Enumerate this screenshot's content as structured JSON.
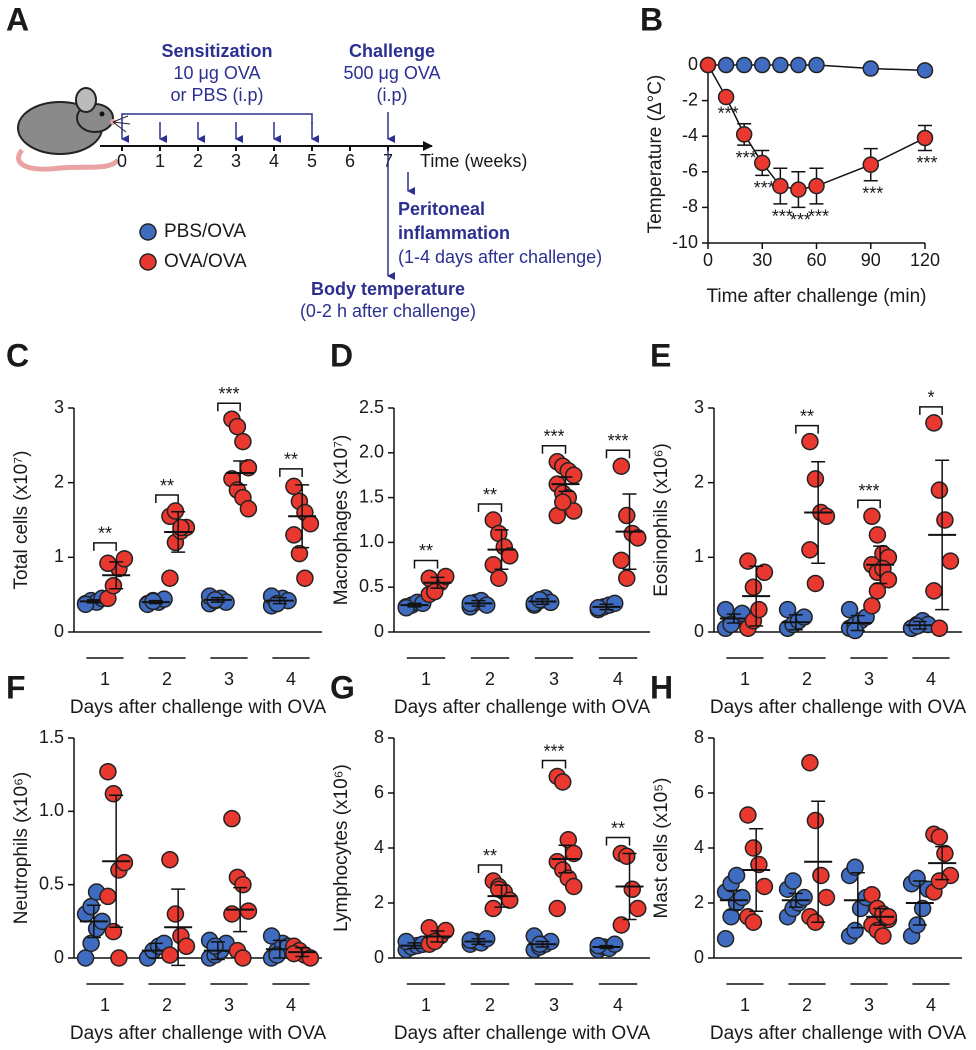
{
  "diagram": {
    "panel": "A",
    "sensitization": {
      "title": "Sensitization",
      "lines": [
        "10 μg OVA",
        "or PBS (i.p)"
      ],
      "weeks": [
        0,
        1,
        2,
        3,
        4,
        5
      ]
    },
    "challenge": {
      "title": "Challenge",
      "lines": [
        "500 μg OVA",
        "(i.p)"
      ],
      "week": 7
    },
    "weeks": [
      0,
      1,
      2,
      3,
      4,
      5,
      6,
      7
    ],
    "axis_label": "Time (weeks)",
    "peritoneal": {
      "title": [
        "Peritoneal",
        "inflammation"
      ],
      "note": "(1-4 days after challenge)"
    },
    "body_temperature": {
      "title": "Body temperature",
      "note": "(0-2 h after challenge)"
    },
    "legend": [
      {
        "name": "PBS/OVA",
        "color": "#3f6cc0"
      },
      {
        "name": "OVA/OVA",
        "color": "#e8382f"
      }
    ]
  },
  "chart_data": [
    {
      "type": "line",
      "panel": "B",
      "xlabel": "Time after challenge (min)",
      "ylabel": "Temperature (Δ°C)",
      "x": [
        0,
        10,
        20,
        30,
        40,
        50,
        60,
        90,
        120
      ],
      "xlim": [
        0,
        120
      ],
      "xticks": [
        0,
        30,
        60,
        90,
        120
      ],
      "ylim": [
        -10,
        0
      ],
      "yticks": [
        0,
        -2,
        -4,
        -6,
        -8,
        -10
      ],
      "series": [
        {
          "color": "#3f6cc0",
          "values": [
            0,
            0,
            0,
            0,
            0,
            0,
            0,
            -0.2,
            -0.3
          ]
        },
        {
          "color": "#e8382f",
          "values": [
            0,
            -1.8,
            -3.9,
            -5.5,
            -6.8,
            -7.0,
            -6.8,
            -5.6,
            -4.1
          ],
          "errors": [
            0,
            0.2,
            0.6,
            0.7,
            1.0,
            1.0,
            1.0,
            0.9,
            0.7
          ],
          "annotations": [
            null,
            "***",
            "***",
            "***",
            "***",
            "***",
            "***",
            "***",
            "***"
          ]
        }
      ]
    },
    {
      "type": "dotplot",
      "panel": "C",
      "ylabel": "Total cells (x10⁷)",
      "xlabel": "Days after challenge with OVA",
      "categories": [
        "1",
        "2",
        "3",
        "4"
      ],
      "ylim": [
        0,
        3
      ],
      "yticks": [
        0,
        1,
        2,
        3
      ],
      "significance": [
        "**",
        "**",
        "***",
        "**"
      ],
      "series": [
        {
          "color": "#3f6cc0",
          "values": [
            [
              0.38,
              0.42,
              0.4,
              0.45,
              0.37
            ],
            [
              0.38,
              0.42,
              0.4,
              0.44,
              0.37,
              0.41
            ],
            [
              0.38,
              0.42,
              0.45,
              0.4,
              0.48,
              0.43
            ],
            [
              0.35,
              0.4,
              0.45,
              0.42,
              0.48,
              0.38
            ]
          ],
          "mean": [
            0.41,
            0.4,
            0.43,
            0.42
          ],
          "errors": [
            0.02,
            0.02,
            0.03,
            0.04
          ]
        },
        {
          "color": "#e8382f",
          "values": [
            [
              0.45,
              0.62,
              0.85,
              0.98,
              0.92
            ],
            [
              0.72,
              1.2,
              1.35,
              1.4,
              1.55,
              1.62,
              1.4
            ],
            [
              2.85,
              2.75,
              2.55,
              2.2,
              2.05,
              1.9,
              1.8,
              1.65
            ],
            [
              1.95,
              1.75,
              1.6,
              1.45,
              1.3,
              1.05,
              0.72
            ]
          ],
          "mean": [
            0.76,
            1.34,
            2.13,
            1.55
          ],
          "errors": [
            0.18,
            0.27,
            0.16,
            0.42
          ]
        }
      ]
    },
    {
      "type": "dotplot",
      "panel": "D",
      "ylabel": "Macrophages (x10⁷)",
      "xlabel": "Days after challenge with OVA",
      "categories": [
        "1",
        "2",
        "3",
        "4"
      ],
      "ylim": [
        0,
        2.5
      ],
      "yticks": [
        0,
        0.5,
        {
          "value": 1,
          "label": "1.0"
        },
        1.5,
        {
          "value": 2,
          "label": "2.0"
        },
        2.5
      ],
      "significance": [
        "**",
        "**",
        "***",
        "***"
      ],
      "series": [
        {
          "color": "#3f6cc0",
          "values": [
            [
              0.28,
              0.3,
              0.33,
              0.32,
              0.27
            ],
            [
              0.28,
              0.33,
              0.35,
              0.3,
              0.32
            ],
            [
              0.3,
              0.35,
              0.38,
              0.33,
              0.32,
              0.36
            ],
            [
              0.25,
              0.28,
              0.3,
              0.32,
              0.27
            ]
          ],
          "mean": [
            0.3,
            0.32,
            0.34,
            0.28
          ],
          "errors": [
            0.02,
            0.03,
            0.03,
            0.03
          ]
        },
        {
          "color": "#e8382f",
          "values": [
            [
              0.42,
              0.5,
              0.55,
              0.62,
              0.6,
              0.45
            ],
            [
              1.25,
              1.1,
              0.95,
              0.85,
              0.75,
              0.6
            ],
            [
              1.9,
              1.85,
              1.8,
              1.75,
              1.65,
              1.55,
              1.5,
              1.35,
              1.3,
              1.45
            ],
            [
              1.85,
              1.3,
              1.1,
              1.05,
              0.8,
              0.6
            ]
          ],
          "mean": [
            0.55,
            0.92,
            1.65,
            1.12
          ],
          "errors": [
            0.06,
            0.22,
            0.08,
            0.42
          ]
        }
      ]
    },
    {
      "type": "dotplot",
      "panel": "E",
      "ylabel": "Eosinophils (x10⁶)",
      "xlabel": "Days after challenge with OVA",
      "categories": [
        "1",
        "2",
        "3",
        "4"
      ],
      "ylim": [
        0,
        3
      ],
      "yticks": [
        0,
        1,
        2,
        3
      ],
      "significance": [
        null,
        "**",
        "***",
        "*"
      ],
      "series": [
        {
          "color": "#3f6cc0",
          "values": [
            [
              0.05,
              0.15,
              0.2,
              0.25,
              0.3,
              0.1
            ],
            [
              0.05,
              0.1,
              0.15,
              0.2,
              0.3
            ],
            [
              0.05,
              0.1,
              0.15,
              0.2,
              0.3,
              0.02
            ],
            [
              0.05,
              0.1,
              0.15,
              0.1,
              0.05,
              0.08
            ]
          ],
          "mean": [
            0.18,
            0.13,
            0.12,
            0.09
          ],
          "errors": [
            0.06,
            0.1,
            0.1,
            0.05
          ]
        },
        {
          "color": "#e8382f",
          "values": [
            [
              0.05,
              0.15,
              0.3,
              0.8,
              0.95,
              0.6
            ],
            [
              2.55,
              2.05,
              1.6,
              1.55,
              1.1,
              0.65
            ],
            [
              1.55,
              1.3,
              1.05,
              1.0,
              0.9,
              0.8,
              0.85,
              0.7,
              0.35,
              0.55
            ],
            [
              2.8,
              1.9,
              1.5,
              0.95,
              0.55,
              0.05
            ]
          ],
          "mean": [
            0.48,
            1.6,
            0.9,
            1.3
          ],
          "errors": [
            0.4,
            0.68,
            0.25,
            1.0
          ]
        }
      ]
    },
    {
      "type": "dotplot",
      "panel": "F",
      "ylabel": "Neutrophils (x10⁶)",
      "xlabel": "Days after challenge with OVA",
      "categories": [
        "1",
        "2",
        "3",
        "4"
      ],
      "ylim": [
        0,
        1.5
      ],
      "yticks": [
        0,
        0.5,
        {
          "value": 1,
          "label": "1.0"
        },
        1.5
      ],
      "series": [
        {
          "color": "#3f6cc0",
          "values": [
            [
              0.0,
              0.1,
              0.2,
              0.25,
              0.3,
              0.35,
              0.45
            ],
            [
              0.0,
              0.05,
              0.08,
              0.1
            ],
            [
              0.0,
              0.02,
              0.05,
              0.1,
              0.12,
              0.08
            ],
            [
              0.0,
              0.05,
              0.1,
              0.08,
              0.15,
              0.02
            ]
          ],
          "mean": [
            0.25,
            0.05,
            0.05,
            0.06
          ],
          "errors": [
            0.11,
            0.05,
            0.06,
            0.06
          ]
        },
        {
          "color": "#e8382f",
          "values": [
            [
              1.27,
              1.12,
              0.6,
              0.65,
              0.42,
              0.18,
              0.0
            ],
            [
              0.67,
              0.3,
              0.15,
              0.08,
              0.02
            ],
            [
              0.95,
              0.55,
              0.5,
              0.32,
              0.3,
              0.05,
              0.0
            ],
            [
              0.08,
              0.05,
              0.02,
              0.0,
              0.03
            ]
          ],
          "mean": [
            0.66,
            0.21,
            0.33,
            0.04
          ],
          "errors": [
            0.45,
            0.26,
            0.15,
            0.03
          ]
        }
      ]
    },
    {
      "type": "dotplot",
      "panel": "G",
      "ylabel": "Lymphocytes (x10⁶)",
      "xlabel": "Days after challenge with OVA",
      "categories": [
        "1",
        "2",
        "3",
        "4"
      ],
      "ylim": [
        0,
        8
      ],
      "yticks": [
        0,
        2,
        4,
        6,
        8
      ],
      "significance": [
        null,
        "**",
        "***",
        "**"
      ],
      "series": [
        {
          "color": "#3f6cc0",
          "values": [
            [
              0.3,
              0.4,
              0.45,
              0.5,
              0.6
            ],
            [
              0.5,
              0.6,
              0.55,
              0.7,
              0.65
            ],
            [
              0.3,
              0.4,
              0.5,
              0.6,
              0.8,
              0.5
            ],
            [
              0.3,
              0.4,
              0.35,
              0.5,
              0.45
            ]
          ],
          "mean": [
            0.45,
            0.6,
            0.5,
            0.4
          ],
          "errors": [
            0.1,
            0.1,
            0.1,
            0.05
          ]
        },
        {
          "color": "#e8382f",
          "values": [
            [
              0.5,
              0.7,
              0.8,
              1.0,
              1.1,
              0.6
            ],
            [
              2.8,
              2.6,
              2.4,
              2.1,
              1.8,
              2.5
            ],
            [
              6.6,
              6.4,
              4.3,
              3.8,
              3.5,
              3.2,
              2.9,
              2.6,
              1.8
            ],
            [
              3.8,
              3.7,
              2.5,
              1.8,
              1.2
            ]
          ],
          "mean": [
            0.78,
            2.25,
            3.6,
            2.6
          ],
          "errors": [
            0.2,
            0.4,
            0.5,
            1.2
          ]
        }
      ]
    },
    {
      "type": "dotplot",
      "panel": "H",
      "ylabel": "Mast cells (x10⁵)",
      "xlabel": "Days after challenge with OVA",
      "categories": [
        "1",
        "2",
        "3",
        "4"
      ],
      "ylim": [
        0,
        8
      ],
      "yticks": [
        0,
        2,
        4,
        6,
        8
      ],
      "series": [
        {
          "color": "#3f6cc0",
          "values": [
            [
              0.7,
              1.5,
              2.0,
              2.2,
              2.4,
              2.7,
              3.0
            ],
            [
              1.5,
              1.8,
              2.0,
              2.2,
              2.5,
              2.8
            ],
            [
              0.8,
              1.0,
              1.8,
              2.2,
              3.0,
              3.3
            ],
            [
              0.8,
              1.2,
              1.8,
              2.5,
              2.7,
              2.9
            ]
          ],
          "mean": [
            2.1,
            2.1,
            2.1,
            2.0
          ],
          "errors": [
            0.35,
            0.25,
            1.0,
            0.8
          ]
        },
        {
          "color": "#e8382f",
          "values": [
            [
              5.2,
              4.0,
              3.4,
              2.6,
              1.5,
              1.3
            ],
            [
              7.1,
              5.0,
              3.0,
              2.2,
              1.5,
              1.3
            ],
            [
              2.3,
              1.8,
              1.6,
              1.4,
              1.2,
              1.0,
              0.8,
              1.5
            ],
            [
              4.5,
              4.4,
              3.8,
              3.0,
              2.4,
              2.8
            ]
          ],
          "mean": [
            3.2,
            3.5,
            1.5,
            3.45
          ],
          "errors": [
            1.5,
            2.2,
            0.3,
            0.6
          ]
        }
      ]
    }
  ]
}
